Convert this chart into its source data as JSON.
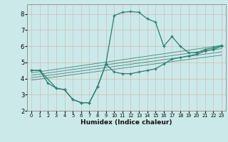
{
  "title": "",
  "xlabel": "Humidex (Indice chaleur)",
  "ylabel": "",
  "bg_color": "#cce9e9",
  "grid_color": "#b0d0d0",
  "line_color": "#2e7d6e",
  "xlim": [
    -0.5,
    23.5
  ],
  "ylim": [
    2,
    8.6
  ],
  "xticks": [
    0,
    1,
    2,
    3,
    4,
    5,
    6,
    7,
    8,
    9,
    10,
    11,
    12,
    13,
    14,
    15,
    16,
    17,
    18,
    19,
    20,
    21,
    22,
    23
  ],
  "yticks": [
    2,
    3,
    4,
    5,
    6,
    7,
    8
  ],
  "curve_upper": {
    "x": [
      0,
      1,
      3,
      4,
      5,
      6,
      7,
      8,
      9,
      10,
      11,
      12,
      13,
      14,
      15,
      16,
      17,
      18,
      19,
      20,
      21,
      22,
      23
    ],
    "y": [
      4.5,
      4.5,
      3.4,
      3.3,
      2.7,
      2.5,
      2.5,
      3.5,
      4.9,
      7.9,
      8.1,
      8.15,
      8.1,
      7.7,
      7.5,
      6.0,
      6.6,
      6.0,
      5.6,
      5.6,
      5.8,
      5.9,
      6.05
    ]
  },
  "curve_lower": {
    "x": [
      0,
      1,
      2,
      3,
      4,
      5,
      6,
      7,
      8,
      9,
      10,
      11,
      12,
      13,
      14,
      15,
      16,
      17,
      18,
      19,
      20,
      21,
      22,
      23
    ],
    "y": [
      4.5,
      4.5,
      3.7,
      3.4,
      3.3,
      2.7,
      2.5,
      2.5,
      3.5,
      4.9,
      4.4,
      4.3,
      4.3,
      4.4,
      4.5,
      4.6,
      4.9,
      5.2,
      5.3,
      5.4,
      5.5,
      5.7,
      5.8,
      6.0
    ]
  },
  "diag_lines": [
    {
      "x": [
        0,
        23
      ],
      "y": [
        4.35,
        6.05
      ]
    },
    {
      "x": [
        0,
        23
      ],
      "y": [
        4.2,
        5.85
      ]
    },
    {
      "x": [
        0,
        23
      ],
      "y": [
        4.05,
        5.65
      ]
    },
    {
      "x": [
        0,
        23
      ],
      "y": [
        3.9,
        5.45
      ]
    }
  ]
}
